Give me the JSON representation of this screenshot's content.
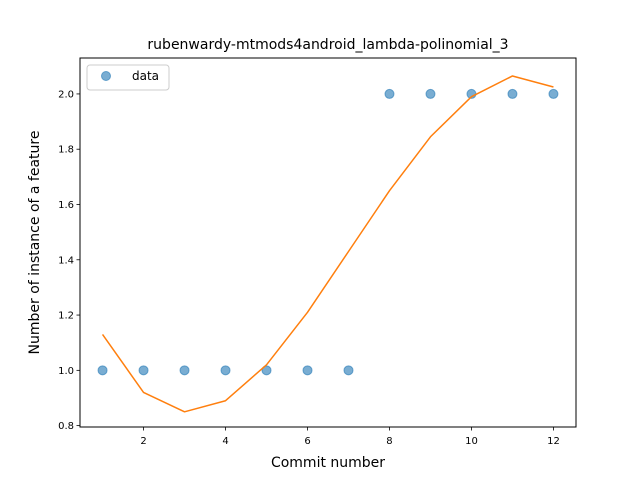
{
  "chart_data": {
    "type": "scatter",
    "title": "rubenwardy-mtmods4android_lambda-polinomial_3",
    "xlabel": "Commit number",
    "ylabel": "Number of instance of a feature",
    "xlim": [
      0.45,
      12.55
    ],
    "ylim": [
      0.795,
      2.13
    ],
    "xticks": [
      2,
      4,
      6,
      8,
      10,
      12
    ],
    "xtick_labels": [
      "2",
      "4",
      "6",
      "8",
      "10",
      "12"
    ],
    "yticks": [
      0.8,
      1.0,
      1.2,
      1.4,
      1.6,
      1.8,
      2.0
    ],
    "ytick_labels": [
      "0.8",
      "1.0",
      "1.2",
      "1.4",
      "1.6",
      "1.8",
      "2.0"
    ],
    "grid": false,
    "legend": {
      "position": "top-left",
      "entries": [
        "data"
      ]
    },
    "series": [
      {
        "name": "data",
        "kind": "scatter",
        "color": "#1f77b4",
        "x": [
          1,
          2,
          3,
          4,
          5,
          6,
          7,
          8,
          9,
          10,
          11,
          12
        ],
        "y": [
          1,
          1,
          1,
          1,
          1,
          1,
          1,
          2,
          2,
          2,
          2,
          2
        ]
      },
      {
        "kind": "line",
        "color": "#ff7f0e",
        "x": [
          1,
          2,
          3,
          4,
          5,
          6,
          7,
          8,
          9,
          10,
          11,
          12
        ],
        "y": [
          1.13,
          0.92,
          0.85,
          0.89,
          1.02,
          1.21,
          1.43,
          1.65,
          1.845,
          1.99,
          2.065,
          2.025
        ]
      }
    ]
  }
}
